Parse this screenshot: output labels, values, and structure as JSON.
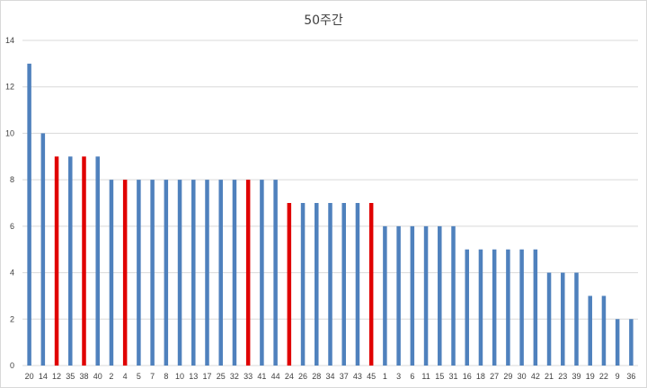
{
  "chart_data": {
    "type": "bar",
    "title": "50주간",
    "xlabel": "",
    "ylabel": "",
    "ylim": [
      0,
      14
    ],
    "yticks": [
      0,
      2,
      4,
      6,
      8,
      10,
      12,
      14
    ],
    "grid": true,
    "legend": "none",
    "colors": {
      "default": "#4f81bd",
      "highlight": "#e00000",
      "grid": "#d9d9d9",
      "axis": "#d9d9d9"
    },
    "categories": [
      "20",
      "14",
      "12",
      "35",
      "38",
      "40",
      "2",
      "4",
      "5",
      "7",
      "8",
      "10",
      "13",
      "17",
      "25",
      "32",
      "33",
      "41",
      "44",
      "24",
      "26",
      "28",
      "34",
      "37",
      "43",
      "45",
      "1",
      "3",
      "6",
      "11",
      "15",
      "31",
      "16",
      "18",
      "27",
      "29",
      "30",
      "42",
      "21",
      "23",
      "39",
      "19",
      "22",
      "9",
      "36"
    ],
    "values": [
      13,
      10,
      9,
      9,
      9,
      9,
      8,
      8,
      8,
      8,
      8,
      8,
      8,
      8,
      8,
      8,
      8,
      8,
      8,
      7,
      7,
      7,
      7,
      7,
      7,
      7,
      6,
      6,
      6,
      6,
      6,
      6,
      5,
      5,
      5,
      5,
      5,
      5,
      4,
      4,
      4,
      3,
      3,
      2,
      2
    ],
    "highlighted": [
      "12",
      "38",
      "4",
      "33",
      "24",
      "45"
    ]
  }
}
